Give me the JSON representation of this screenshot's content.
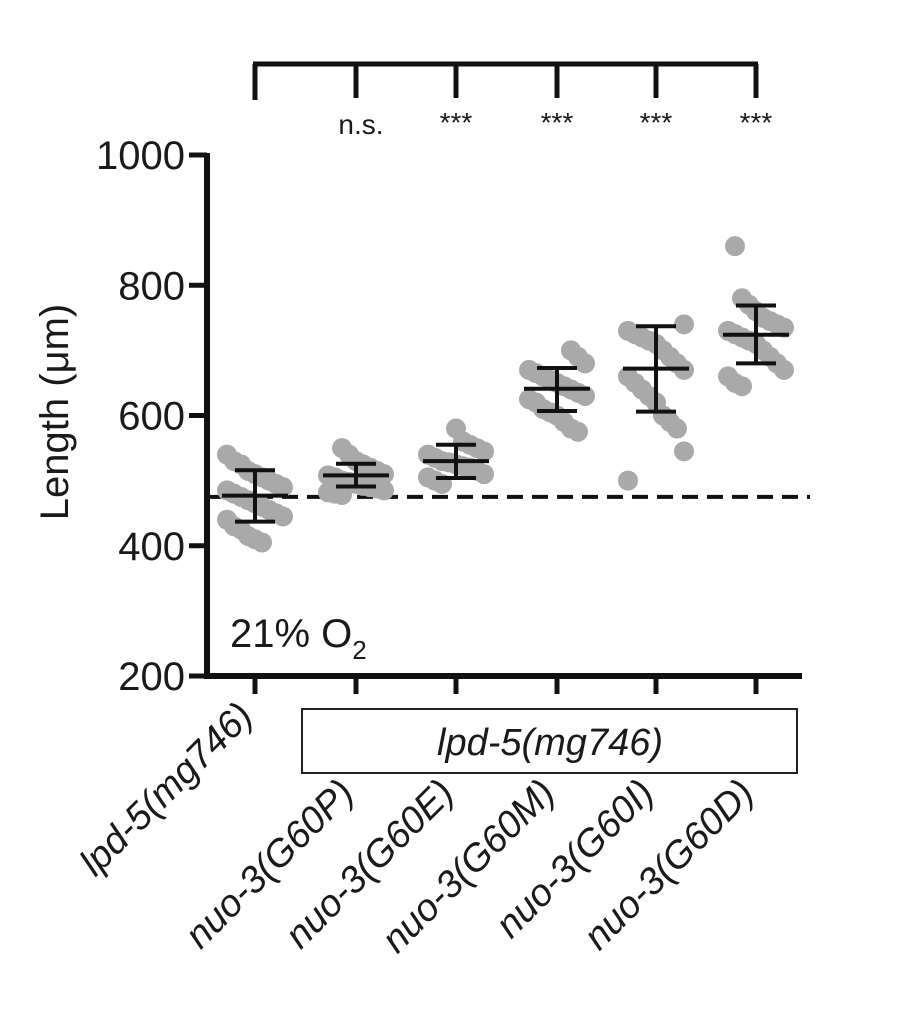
{
  "chart_data": {
    "type": "scatter",
    "subtype": "dot-plot with mean and SD error bars",
    "title": "",
    "xlabel": "",
    "ylabel": "Length (μm)",
    "ylim": [
      200,
      1000
    ],
    "yticks": [
      200,
      400,
      600,
      800,
      1000
    ],
    "categories": [
      "lpd-5(mg746)",
      "nuo-3(G60P)",
      "nuo-3(G60E)",
      "nuo-3(G60M)",
      "nuo-3(G60I)",
      "nuo-3(G60D)"
    ],
    "group_label": "lpd-5(mg746)",
    "group_spans_categories": [
      1,
      5
    ],
    "annotation": {
      "text": "21% O",
      "subscript": "2"
    },
    "reference_line": {
      "y": 475,
      "style": "dashed"
    },
    "significance": [
      "",
      "n.s.",
      "***",
      "***",
      "***",
      "***"
    ],
    "comparison_bracket": "all groups vs lpd-5(mg746)",
    "mean": [
      477,
      508,
      530,
      641,
      672,
      724
    ],
    "sd_upper": [
      516,
      526,
      555,
      673,
      737,
      769
    ],
    "sd_lower": [
      437,
      491,
      504,
      607,
      606,
      680
    ],
    "points": [
      [
        540,
        530,
        525,
        515,
        510,
        505,
        500,
        495,
        490,
        485,
        480,
        475,
        470,
        465,
        460,
        455,
        450,
        445,
        440,
        430,
        425,
        415,
        410,
        405
      ],
      [
        550,
        540,
        530,
        525,
        520,
        515,
        510,
        508,
        505,
        500,
        498,
        495,
        492,
        490,
        488,
        485,
        482,
        480,
        478
      ],
      [
        580,
        560,
        555,
        550,
        545,
        540,
        535,
        530,
        528,
        525,
        522,
        520,
        515,
        510,
        505,
        500,
        495
      ],
      [
        700,
        690,
        680,
        670,
        665,
        660,
        655,
        650,
        645,
        640,
        635,
        630,
        625,
        620,
        610,
        605,
        600,
        590,
        580,
        575
      ],
      [
        740,
        730,
        725,
        720,
        715,
        710,
        700,
        690,
        680,
        670,
        660,
        650,
        640,
        630,
        620,
        600,
        590,
        580,
        545,
        500
      ],
      [
        860,
        780,
        770,
        760,
        750,
        745,
        740,
        735,
        730,
        725,
        720,
        715,
        710,
        700,
        690,
        680,
        670,
        660,
        650,
        645
      ]
    ],
    "point_color": "#a9a9a9",
    "line_color": "#111111"
  }
}
